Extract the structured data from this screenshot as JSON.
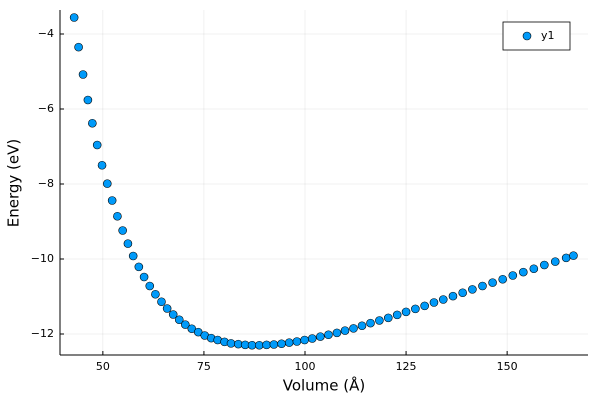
{
  "chart_data": {
    "type": "scatter",
    "xlabel": "Volume (Å)",
    "ylabel": "Energy (eV)",
    "x": [
      42.9,
      44.0,
      45.1,
      46.3,
      47.4,
      48.6,
      49.8,
      51.1,
      52.3,
      53.6,
      54.9,
      56.2,
      57.5,
      58.9,
      60.2,
      61.6,
      63.0,
      64.5,
      65.9,
      67.4,
      68.9,
      70.4,
      72.0,
      73.6,
      75.2,
      76.8,
      78.4,
      80.1,
      81.7,
      83.5,
      85.2,
      86.9,
      88.7,
      90.5,
      92.3,
      94.2,
      96.1,
      98.0,
      99.9,
      101.8,
      103.8,
      105.8,
      107.9,
      109.9,
      112.0,
      114.1,
      116.2,
      118.4,
      120.6,
      122.8,
      125.0,
      127.3,
      129.6,
      131.9,
      134.2,
      136.6,
      139.0,
      141.4,
      143.9,
      146.4,
      148.9,
      151.4,
      154.0,
      156.6,
      159.2,
      161.9,
      164.6,
      166.4
    ],
    "series": [
      {
        "name": "y1",
        "color": "#009af9",
        "values": [
          -3.56,
          -4.35,
          -5.08,
          -5.76,
          -6.38,
          -6.96,
          -7.5,
          -7.99,
          -8.44,
          -8.86,
          -9.24,
          -9.59,
          -9.92,
          -10.21,
          -10.48,
          -10.72,
          -10.94,
          -11.14,
          -11.32,
          -11.48,
          -11.62,
          -11.75,
          -11.86,
          -11.95,
          -12.04,
          -12.11,
          -12.16,
          -12.21,
          -12.25,
          -12.27,
          -12.29,
          -12.3,
          -12.3,
          -12.29,
          -12.28,
          -12.26,
          -12.23,
          -12.2,
          -12.16,
          -12.12,
          -12.07,
          -12.02,
          -11.97,
          -11.91,
          -11.85,
          -11.78,
          -11.71,
          -11.64,
          -11.57,
          -11.49,
          -11.41,
          -11.33,
          -11.25,
          -11.16,
          -11.08,
          -10.99,
          -10.9,
          -10.81,
          -10.72,
          -10.63,
          -10.54,
          -10.44,
          -10.35,
          -10.26,
          -10.16,
          -10.07,
          -9.97,
          -9.91
        ]
      }
    ],
    "xlim": [
      39.4,
      170
    ],
    "xticks": [
      50,
      75,
      100,
      125,
      150
    ],
    "ylim": [
      -12.56,
      -3.36
    ],
    "yticks": [
      {
        "value": -12,
        "label": "−12"
      },
      {
        "value": -10,
        "label": "−10"
      },
      {
        "value": -8,
        "label": "−8"
      },
      {
        "value": -6,
        "label": "−6"
      },
      {
        "value": -4,
        "label": "−4"
      }
    ],
    "grid": true,
    "legend": "top right"
  }
}
